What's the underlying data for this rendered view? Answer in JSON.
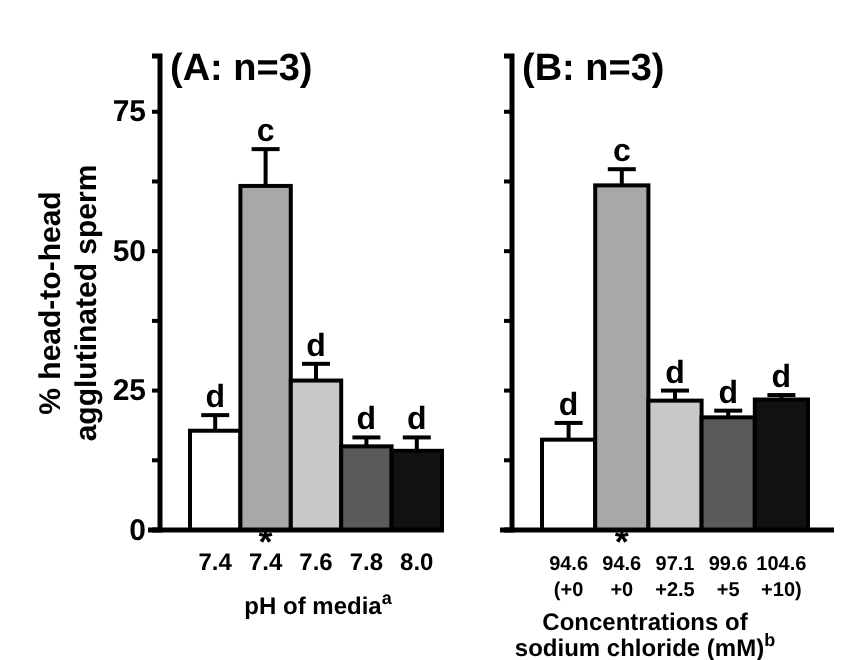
{
  "chart_data": [
    {
      "type": "bar",
      "title": "(A: n=3)",
      "ylabel": "% head-to-head\nagglutinated sperm",
      "xlabel": "pH of media$^{a}$",
      "categories": [
        "7.4",
        "7.4",
        "7.6",
        "7.8",
        "8.0"
      ],
      "values": [
        17.8,
        61.7,
        26.8,
        15.0,
        14.2
      ],
      "errors": [
        [
          17.8,
          20.6
        ],
        [
          61.7,
          68.3
        ],
        [
          26.8,
          29.8
        ],
        [
          15.0,
          16.6
        ],
        [
          14.2,
          16.6
        ]
      ],
      "value_labels": [
        "d",
        "c",
        "d",
        "d",
        "d"
      ],
      "colors": [
        "#ffffff",
        "#a8a8a8",
        "#c8c8c8",
        "#5a5a5a",
        "#111111"
      ],
      "annotations": [
        {
          "text": "*",
          "x": "7.4",
          "y": 0
        }
      ],
      "ylim": [
        0,
        85
      ],
      "yticks": [
        0,
        {
          "value": 12.5,
          "label": null
        },
        25,
        {
          "value": 37.5,
          "label": null
        },
        50,
        {
          "value": 62.5,
          "label": null
        },
        75
      ],
      "grid": false
    },
    {
      "type": "bar",
      "title": "(B: n=3)",
      "xlabel": "Concentrations of\nsodium chloride (mM)$^{b}$",
      "categories": [
        "94.6\n(+0",
        "94.6\n+0",
        "97.1\n+2.5",
        "99.6\n+5",
        "104.6\n+10)"
      ],
      "values": [
        16.2,
        61.8,
        23.2,
        20.2,
        23.4
      ],
      "errors": [
        [
          16.2,
          19.2
        ],
        [
          61.8,
          64.7
        ],
        [
          23.2,
          25.0
        ],
        [
          20.2,
          21.4
        ],
        [
          23.4,
          24.2
        ]
      ],
      "value_labels": [
        "d",
        "c",
        "d",
        "d",
        "d"
      ],
      "colors": [
        "#ffffff",
        "#a8a8a8",
        "#c8c8c8",
        "#5a5a5a",
        "#111111"
      ],
      "annotations": [
        {
          "text": "*",
          "x": "94.6\n+0",
          "y": 0
        }
      ],
      "ylim": [
        0,
        85
      ],
      "yticks": [
        0,
        {
          "value": 12.5,
          "label": null
        },
        25,
        {
          "value": 37.5,
          "label": null
        },
        50,
        {
          "value": 62.5,
          "label": null
        },
        75
      ],
      "tick_labels": "x",
      "grid": false
    }
  ]
}
